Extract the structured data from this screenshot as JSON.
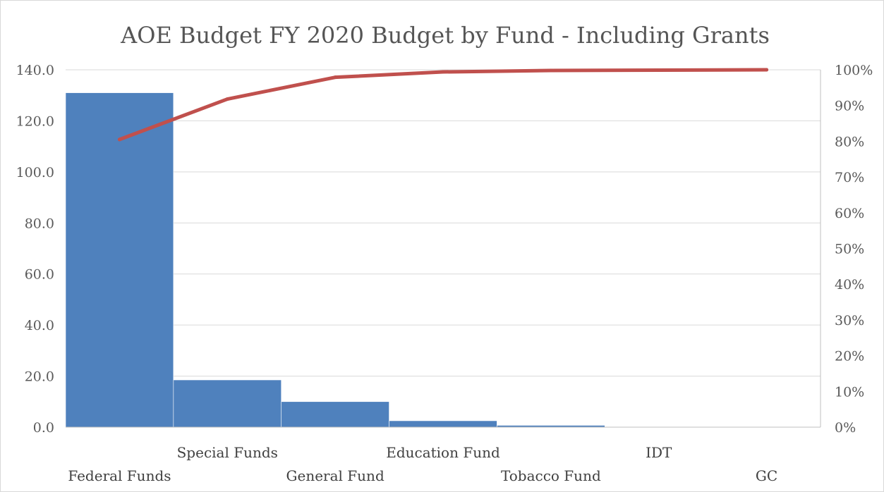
{
  "chart_data": {
    "type": "bar",
    "title": "AOE Budget FY 2020 Budget by Fund - Including Grants",
    "categories": [
      "Federal Funds",
      "Special Funds",
      "General Fund",
      "Education Fund",
      "Tobacco Fund",
      "IDT",
      "GC"
    ],
    "series": [
      {
        "type": "bar",
        "axis": "left",
        "values": [
          131.0,
          18.5,
          10.0,
          2.5,
          0.7,
          0.2,
          0.1
        ],
        "color": "#4f81bd"
      },
      {
        "type": "line",
        "axis": "right",
        "values": [
          80.5,
          91.8,
          97.9,
          99.4,
          99.8,
          99.9,
          100.0
        ],
        "color": "#c0504d"
      }
    ],
    "y_left": {
      "min": 0,
      "max": 140,
      "step": 20,
      "ticks": [
        "0.0",
        "20.0",
        "40.0",
        "60.0",
        "80.0",
        "100.0",
        "120.0",
        "140.0"
      ]
    },
    "y_right": {
      "min": 0,
      "max": 100,
      "step": 10,
      "ticks": [
        "0%",
        "10%",
        "20%",
        "30%",
        "40%",
        "50%",
        "60%",
        "70%",
        "80%",
        "90%",
        "100%"
      ]
    },
    "grid": true,
    "legend": "none",
    "bar_gap": 0
  }
}
